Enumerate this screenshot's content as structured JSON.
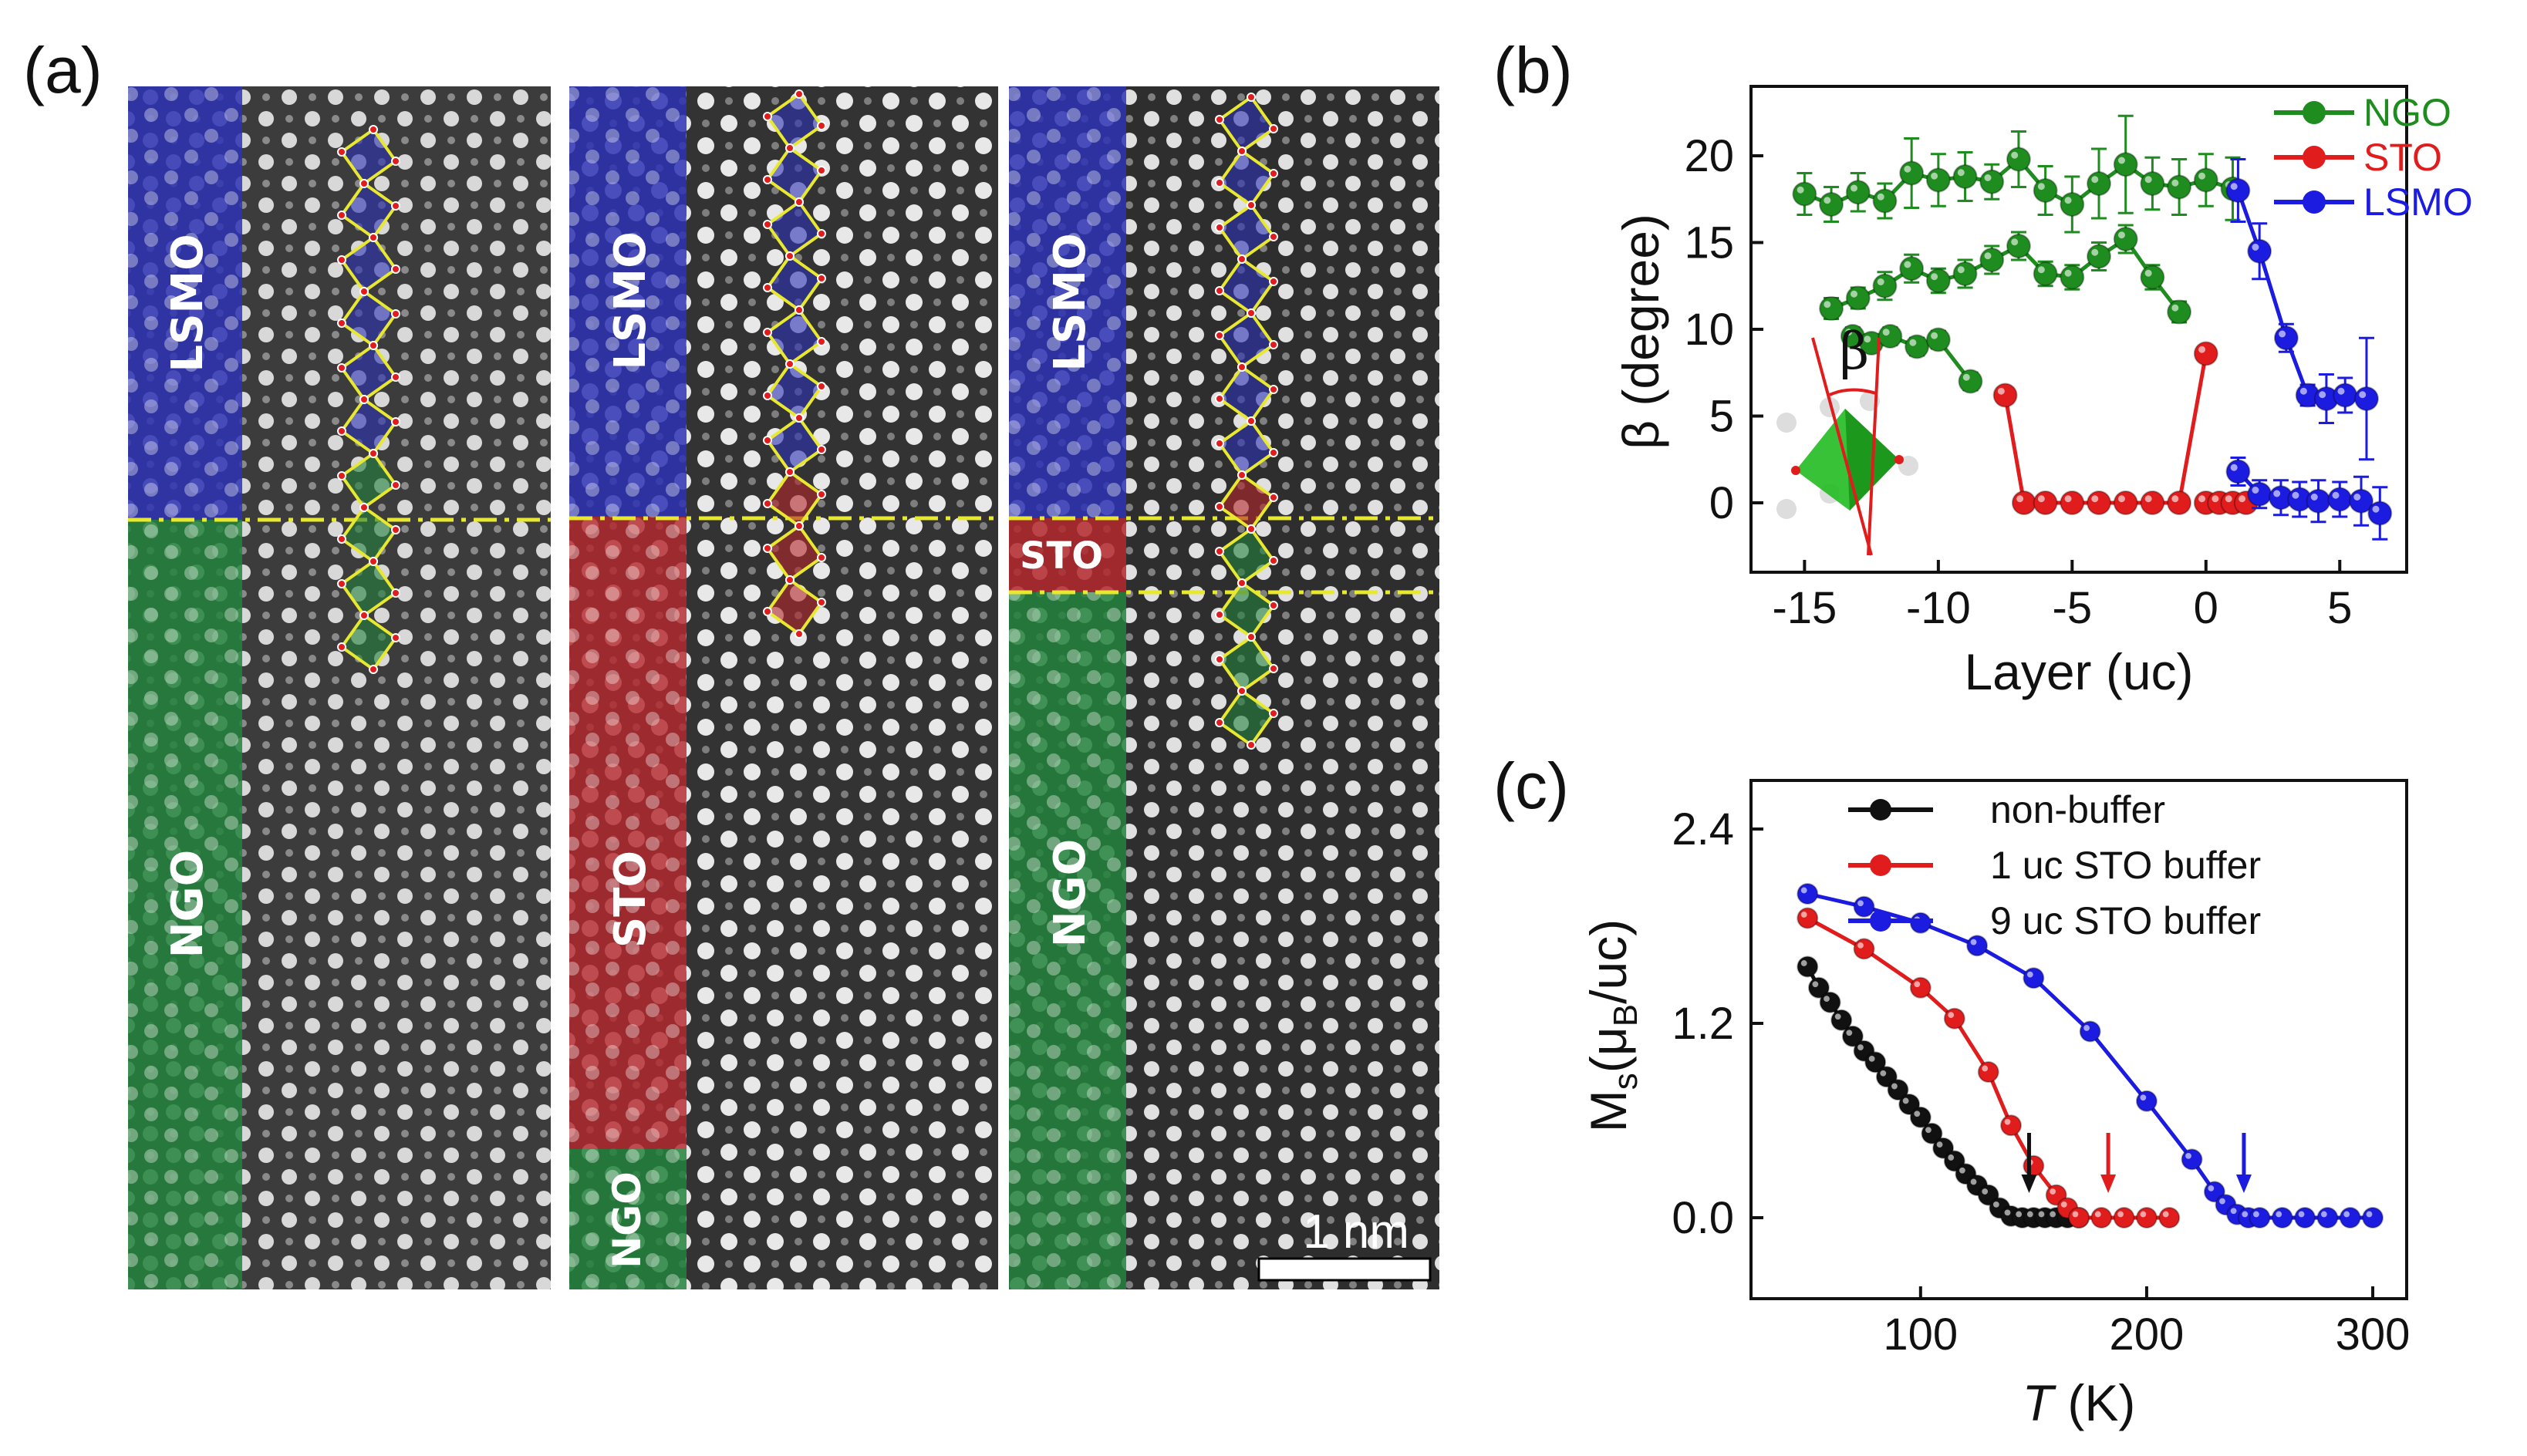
{
  "panel_a": {
    "label": "(a)",
    "scale_bar": "1 nm",
    "images": [
      {
        "top_layer": "LSMO",
        "bottom_layer": "NGO"
      },
      {
        "top_layer": "LSMO",
        "middle_layer": "STO",
        "bottom_layer": "NGO"
      },
      {
        "top_layer": "LSMO",
        "middle_layer": "STO",
        "bottom_layer": "NGO"
      }
    ],
    "colors": {
      "LSMO": "#2d32b4",
      "STO": "#b4282d",
      "NGO": "#23823c",
      "guide": "#e8e830"
    }
  },
  "chart_data": [
    {
      "panel": "(b)",
      "type": "scatter",
      "xlabel": "Layer (uc)",
      "ylabel": "β (degree)",
      "xlim": [
        -17,
        7.5
      ],
      "ylim": [
        -4,
        24
      ],
      "xticks": [
        "-15",
        "-10",
        "-5",
        "0",
        "5"
      ],
      "yticks": [
        "0",
        "5",
        "10",
        "15",
        "20"
      ],
      "inset_symbol": "β",
      "series": [
        {
          "name": "NGO",
          "color": "#1e8c1e",
          "x": [
            -15,
            -14,
            -13,
            -12,
            -11,
            -10,
            -9,
            -8,
            -7,
            -6,
            -5,
            -4,
            -3,
            -2,
            -1,
            0,
            1
          ],
          "y": [
            17.8,
            17.2,
            17.9,
            17.4,
            19.0,
            18.6,
            18.8,
            18.5,
            19.8,
            18.0,
            17.2,
            18.4,
            19.5,
            18.4,
            18.2,
            18.6,
            18.1
          ],
          "err": [
            1.2,
            1.0,
            1.1,
            1.0,
            2.0,
            1.5,
            1.4,
            1.0,
            1.6,
            1.4,
            1.6,
            2.0,
            2.8,
            1.5,
            1.6,
            1.5,
            1.8
          ]
        },
        {
          "name": "NGO",
          "color": "#1e8c1e",
          "x": [
            -14,
            -13,
            -12,
            -11,
            -10,
            -9,
            -8,
            -7,
            -6,
            -5,
            -4,
            -3,
            -2,
            -1
          ],
          "y": [
            11.2,
            11.8,
            12.5,
            13.5,
            12.8,
            13.2,
            14.0,
            14.8,
            13.2,
            13.0,
            14.2,
            15.2,
            13.0,
            11.0
          ],
          "err": [
            0.6,
            0.6,
            0.8,
            0.8,
            0.7,
            0.8,
            0.8,
            0.8,
            0.7,
            0.7,
            0.8,
            0.8,
            0.7,
            0.6
          ]
        },
        {
          "name": "NGO",
          "color": "#1e8c1e",
          "x": [
            -13.2,
            -12.5,
            -11.8,
            -10.8,
            -10,
            -8.8
          ],
          "y": [
            9.6,
            9.2,
            9.6,
            9.0,
            9.4,
            7.0
          ],
          "err": [
            0.5,
            0.5,
            0.5,
            0.5,
            0.5,
            0.5
          ]
        },
        {
          "name": "STO",
          "color": "#e01c1c",
          "x": [
            -7.5,
            -6.8,
            -6,
            -5,
            -4,
            -3,
            -2,
            -1,
            0
          ],
          "y": [
            6.2,
            0,
            0,
            0,
            0,
            0,
            0,
            0,
            8.6
          ],
          "err": [
            0,
            0,
            0,
            0,
            0,
            0,
            0,
            0,
            0
          ]
        },
        {
          "name": "STO",
          "color": "#e01c1c",
          "x": [
            0,
            0.5,
            1,
            1.5
          ],
          "y": [
            0,
            0,
            0,
            0
          ],
          "err": [
            0,
            0,
            0,
            0
          ]
        },
        {
          "name": "LSMO",
          "color": "#1c1ce0",
          "x": [
            1.2,
            2,
            3,
            3.8,
            4.5,
            5.2,
            6
          ],
          "y": [
            18,
            14.5,
            9.5,
            6.2,
            6,
            6.2,
            6
          ],
          "err": [
            1.8,
            1.6,
            0.8,
            0.6,
            1.4,
            1.0,
            3.5
          ]
        },
        {
          "name": "LSMO",
          "color": "#1c1ce0",
          "x": [
            1.2,
            2,
            2.8,
            3.5,
            4.2,
            5,
            5.8,
            6.5
          ],
          "y": [
            1.8,
            0.5,
            0.3,
            0.2,
            0.1,
            0.2,
            0.1,
            -0.6
          ],
          "err": [
            0.8,
            0.8,
            1.0,
            1.0,
            1.2,
            1.0,
            1.4,
            1.5
          ]
        }
      ],
      "legend": [
        {
          "name": "NGO",
          "color": "#1e8c1e"
        },
        {
          "name": "STO",
          "color": "#e01c1c"
        },
        {
          "name": "LSMO",
          "color": "#1c1ce0"
        }
      ]
    },
    {
      "panel": "(c)",
      "type": "line",
      "xlabel_italic": "T",
      "xlabel_rest": " (K)",
      "ylabel_main": "M",
      "ylabel_sub": "s",
      "ylabel_mid": "(μ",
      "ylabel_sub2": "B",
      "ylabel_end": "/uc)",
      "xlim": [
        25,
        315
      ],
      "ylim": [
        -0.5,
        2.7
      ],
      "xticks": [
        "100",
        "200",
        "300"
      ],
      "yticks": [
        "0.0",
        "1.2",
        "2.4"
      ],
      "series": [
        {
          "name": "non-buffer",
          "color": "#111111",
          "x": [
            50,
            55,
            60,
            65,
            70,
            75,
            80,
            85,
            90,
            95,
            100,
            105,
            110,
            115,
            120,
            125,
            130,
            135,
            140,
            145,
            150,
            155,
            160,
            165,
            170
          ],
          "y": [
            1.55,
            1.42,
            1.33,
            1.22,
            1.12,
            1.03,
            0.96,
            0.87,
            0.79,
            0.7,
            0.62,
            0.52,
            0.43,
            0.35,
            0.27,
            0.2,
            0.14,
            0.06,
            0.01,
            0.0,
            0.0,
            0.0,
            0.0,
            0.0,
            0.0
          ]
        },
        {
          "name": "1 uc STO buffer",
          "color": "#e01c1c",
          "x": [
            50,
            75,
            100,
            115,
            130,
            140,
            150,
            160,
            165,
            170,
            180,
            190,
            200,
            210
          ],
          "y": [
            1.85,
            1.66,
            1.42,
            1.23,
            0.9,
            0.57,
            0.32,
            0.14,
            0.06,
            0.0,
            0.0,
            0.0,
            0.0,
            0.0
          ]
        },
        {
          "name": "9 uc STO buffer",
          "color": "#1c1ce0",
          "x": [
            50,
            75,
            100,
            125,
            150,
            175,
            200,
            220,
            230,
            235,
            240,
            245,
            250,
            260,
            270,
            280,
            290,
            300
          ],
          "y": [
            2.0,
            1.92,
            1.82,
            1.68,
            1.48,
            1.15,
            0.72,
            0.36,
            0.16,
            0.08,
            0.02,
            0.0,
            0.0,
            0.0,
            0.0,
            0.0,
            0.0,
            0.0
          ]
        }
      ],
      "arrows": [
        {
          "x": 148,
          "color": "#111111"
        },
        {
          "x": 183,
          "color": "#e01c1c"
        },
        {
          "x": 243,
          "color": "#1c1ce0"
        }
      ]
    }
  ]
}
